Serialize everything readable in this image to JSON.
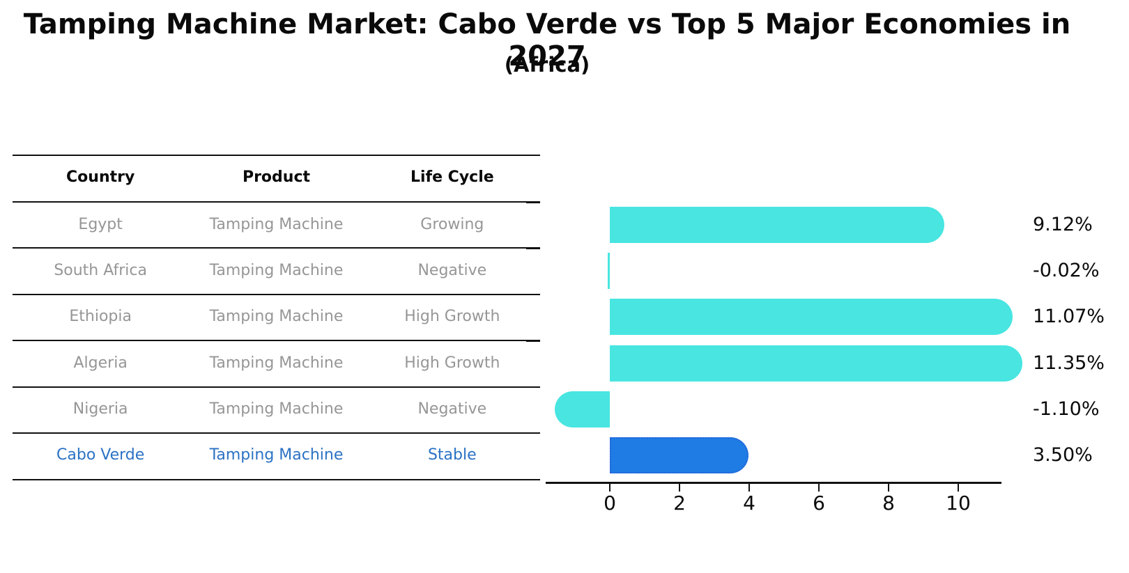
{
  "title": "Tamping Machine Market: Cabo Verde vs Top 5 Major Economies in 2027",
  "subtitle": "(Africa)",
  "table": {
    "columns": [
      "Country",
      "Product",
      "Life Cycle"
    ],
    "rows": [
      {
        "country": "Egypt",
        "product": "Tamping Machine",
        "life_cycle": "Growing",
        "highlight": false
      },
      {
        "country": "South Africa",
        "product": "Tamping Machine",
        "life_cycle": "Negative",
        "highlight": false
      },
      {
        "country": "Ethiopia",
        "product": "Tamping Machine",
        "life_cycle": "High Growth",
        "highlight": false
      },
      {
        "country": "Algeria",
        "product": "Tamping Machine",
        "life_cycle": "High Growth",
        "highlight": false
      },
      {
        "country": "Nigeria",
        "product": "Tamping Machine",
        "life_cycle": "Negative",
        "highlight": false
      },
      {
        "country": "Cabo Verde",
        "product": "Tamping Machine",
        "life_cycle": "Stable",
        "highlight": true
      }
    ]
  },
  "chart_data": {
    "type": "bar",
    "orientation": "horizontal",
    "title": "Tamping Machine Market: Cabo Verde vs Top 5 Major Economies in 2027 (Africa)",
    "categories": [
      "Egypt",
      "South Africa",
      "Ethiopia",
      "Algeria",
      "Nigeria",
      "Cabo Verde"
    ],
    "values": [
      9.12,
      -0.02,
      11.07,
      11.35,
      -1.1,
      3.5
    ],
    "value_labels": [
      "9.12%",
      "-0.02%",
      "11.07%",
      "11.35%",
      "-1.10%",
      "3.50%"
    ],
    "xticks": [
      "0",
      "2",
      "4",
      "6",
      "8",
      "10"
    ],
    "xtick_values": [
      0,
      2,
      4,
      6,
      8,
      10
    ],
    "xlim": [
      -1.9,
      12.3
    ],
    "grid": false,
    "legend": false,
    "bar_color": "#48E5E1",
    "highlight_index": 5,
    "highlight_bar_color": "#1E7CE4",
    "highlight_border_color": "#2A63D8",
    "highlight_border_style": "dotted"
  },
  "colors": {
    "header_text": "#0a0a0a",
    "row_text": "#969696",
    "highlight_text": "#2B72C4",
    "axis": "#111111"
  }
}
